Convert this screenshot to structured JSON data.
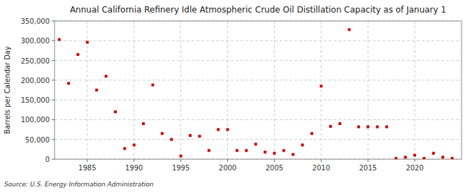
{
  "chart_data": {
    "type": "scatter",
    "title": "Annual California Refinery Idle Atmospheric Crude Oil Distillation Capacity as of January 1",
    "y_label": "Barrels per Calendar Day",
    "annotations": [
      "Source: U.S. Energy Information Administration"
    ],
    "x": [
      1982,
      1983,
      1984,
      1985,
      1986,
      1987,
      1988,
      1989,
      1990,
      1991,
      1992,
      1993,
      1994,
      1995,
      1996,
      1997,
      1998,
      1999,
      2000,
      2001,
      2002,
      2003,
      2004,
      2005,
      2006,
      2007,
      2008,
      2009,
      2010,
      2011,
      2012,
      2013,
      2014,
      2015,
      2016,
      2017,
      2018,
      2019,
      2020,
      2021,
      2022,
      2023,
      2024
    ],
    "values": [
      303000,
      192000,
      265000,
      296000,
      175000,
      210000,
      120000,
      27000,
      36000,
      90000,
      188000,
      65000,
      50000,
      8000,
      60000,
      58000,
      22000,
      75000,
      75000,
      22000,
      22000,
      38000,
      18000,
      15000,
      22000,
      12000,
      36000,
      65000,
      185000,
      83000,
      90000,
      328000,
      82000,
      82000,
      82000,
      82000,
      2000,
      5000,
      10000,
      2000,
      15000,
      5000,
      2000
    ],
    "color": "#cc0000",
    "marker": "square",
    "grid": true,
    "xlim": [
      1981.5,
      2025
    ],
    "xticks": [
      1985,
      1990,
      1995,
      2000,
      2005,
      2010,
      2015,
      2020
    ],
    "ylim": [
      0,
      350000
    ],
    "yticks": [
      0,
      {
        "value": 50000,
        "label": "50,000"
      },
      {
        "value": 100000,
        "label": "100,000"
      },
      {
        "value": 150000,
        "label": "150,000"
      },
      {
        "value": 200000,
        "label": "200,000"
      },
      {
        "value": 250000,
        "label": "250,000"
      },
      {
        "value": 300000,
        "label": "300,000"
      },
      {
        "value": 350000,
        "label": "350,000"
      }
    ]
  }
}
